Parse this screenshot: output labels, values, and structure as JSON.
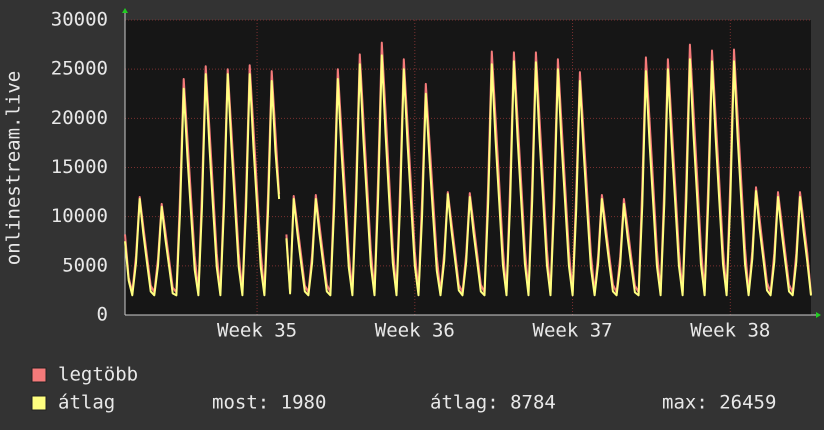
{
  "chart_data": {
    "type": "line",
    "y_label": "onlinestream.live",
    "ylim": [
      0,
      30000
    ],
    "yticks": [
      0,
      5000,
      10000,
      15000,
      20000,
      25000,
      30000
    ],
    "xlim": [
      0,
      187
    ],
    "xticks": [
      {
        "value": 36,
        "label": "Week 35"
      },
      {
        "value": 79,
        "label": "Week 36"
      },
      {
        "value": 122,
        "label": "Week 37"
      },
      {
        "value": 165,
        "label": "Week 38"
      }
    ],
    "grid": true,
    "series": [
      {
        "name": "legtöbb",
        "color": "#f47a7a",
        "values": [
          8200,
          3800,
          2300,
          6000,
          12000,
          9000,
          6000,
          3000,
          2300,
          5700,
          11300,
          8500,
          5700,
          2800,
          2300,
          12000,
          24000,
          18000,
          12000,
          6000,
          2300,
          12700,
          25300,
          19000,
          12700,
          6300,
          2300,
          12500,
          25000,
          18800,
          12500,
          6300,
          2300,
          12700,
          25400,
          19100,
          12700,
          6400,
          2300,
          12400,
          24800,
          18600,
          12300,
          null,
          8200,
          2400,
          12100,
          9100,
          6100,
          3000,
          2300,
          6100,
          12200,
          9200,
          6100,
          3100,
          2300,
          12500,
          25000,
          18800,
          12500,
          6300,
          2300,
          13300,
          26500,
          19900,
          13300,
          6600,
          2300,
          13900,
          27700,
          20800,
          13900,
          6900,
          2300,
          13000,
          26000,
          19500,
          13000,
          6500,
          2300,
          11800,
          23500,
          17600,
          11800,
          5900,
          2300,
          6300,
          12500,
          9400,
          6300,
          3100,
          2300,
          6200,
          12400,
          9300,
          6200,
          3100,
          2300,
          13400,
          26800,
          20100,
          13400,
          6700,
          2300,
          13400,
          26700,
          20000,
          13400,
          6700,
          2300,
          13400,
          26700,
          20000,
          13400,
          6700,
          2300,
          13000,
          26000,
          19500,
          13000,
          6500,
          2300,
          12400,
          24700,
          18500,
          12400,
          6200,
          2300,
          6100,
          12200,
          9200,
          6100,
          3100,
          2300,
          5900,
          11800,
          8900,
          5900,
          3000,
          2300,
          13100,
          26200,
          19700,
          13100,
          6600,
          2300,
          13000,
          26000,
          19500,
          13000,
          6500,
          2300,
          13800,
          27500,
          20600,
          13800,
          6900,
          2300,
          13500,
          26900,
          20200,
          13500,
          6700,
          2300,
          13500,
          27000,
          20300,
          13500,
          6800,
          2300,
          6500,
          13000,
          9800,
          6500,
          3300,
          2300,
          6300,
          12500,
          9400,
          6300,
          3100,
          2300,
          6300,
          12500,
          9400,
          6300,
          2100
        ]
      },
      {
        "name": "átlag",
        "color": "#ffff80",
        "values": [
          7500,
          3500,
          2000,
          5300,
          11800,
          8300,
          5300,
          2400,
          2000,
          5000,
          11000,
          7700,
          5000,
          2200,
          2000,
          10400,
          23000,
          16100,
          10400,
          4600,
          2000,
          11000,
          24500,
          17200,
          11000,
          4900,
          2000,
          11000,
          24500,
          17200,
          11000,
          4900,
          2000,
          11000,
          24500,
          17200,
          11000,
          4900,
          2000,
          10700,
          23800,
          16700,
          11800,
          null,
          7800,
          2200,
          11800,
          8300,
          5300,
          2400,
          2000,
          5300,
          11800,
          8300,
          5300,
          2400,
          2000,
          10800,
          24000,
          16800,
          10800,
          4800,
          2000,
          11500,
          25500,
          17900,
          11500,
          5100,
          2000,
          11900,
          26400,
          18500,
          11900,
          5300,
          2000,
          11300,
          25000,
          17500,
          11300,
          5000,
          2000,
          10100,
          22500,
          15800,
          10100,
          4500,
          2000,
          5500,
          12300,
          8600,
          5500,
          2500,
          2000,
          5400,
          12000,
          8400,
          5400,
          2400,
          2000,
          11500,
          25500,
          17900,
          11500,
          5100,
          2000,
          11600,
          25800,
          18100,
          11600,
          5200,
          2000,
          11600,
          25700,
          18000,
          11600,
          5100,
          2000,
          11300,
          25000,
          17500,
          11300,
          5000,
          2000,
          10700,
          23800,
          16700,
          10700,
          4800,
          2000,
          5300,
          11800,
          8300,
          5300,
          2400,
          2000,
          5100,
          11300,
          7900,
          5100,
          2300,
          2000,
          11200,
          24800,
          17400,
          11200,
          5000,
          2000,
          11300,
          25000,
          17500,
          11300,
          5000,
          2000,
          11700,
          26000,
          18200,
          11700,
          5200,
          2000,
          11600,
          25800,
          18100,
          11600,
          5200,
          2000,
          11600,
          25800,
          18100,
          11600,
          5200,
          2000,
          5700,
          12600,
          8800,
          5700,
          2500,
          2000,
          5400,
          12000,
          8400,
          5400,
          2400,
          2000,
          5400,
          12000,
          8400,
          5400,
          1980
        ]
      }
    ],
    "stats": [
      "most: 1980",
      "átlag: 8784",
      "max: 26459"
    ]
  }
}
